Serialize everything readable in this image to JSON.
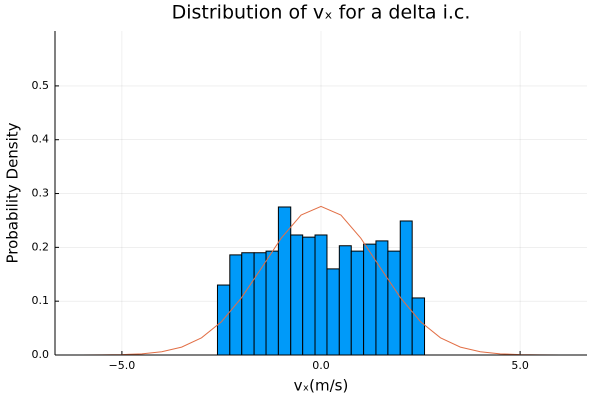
{
  "chart_data": {
    "type": "histogram",
    "title": "Distribution of vₓ for a delta i.c.",
    "x_label": "vₓ(m/s)",
    "y_label": "Probability Density",
    "bins": [
      -2.6,
      -2.29,
      -1.99,
      -1.68,
      -1.38,
      -1.07,
      -0.76,
      -0.46,
      -0.15,
      0.15,
      0.46,
      0.76,
      1.07,
      1.38,
      1.68,
      1.99,
      2.29,
      2.6
    ],
    "values": [
      0.13,
      0.186,
      0.19,
      0.19,
      0.193,
      0.275,
      0.223,
      0.219,
      0.223,
      0.16,
      0.203,
      0.193,
      0.206,
      0.212,
      0.193,
      0.249,
      0.106
    ],
    "color": "#009af9",
    "overlay": {
      "type": "line",
      "color": "#e26f46",
      "x": [
        -6.5,
        -6,
        -5.5,
        -5,
        -4.5,
        -4,
        -3.5,
        -3,
        -2.5,
        -2,
        -1.5,
        -1,
        -0.5,
        0,
        0.5,
        1,
        1.5,
        2,
        2.5,
        3,
        3.5,
        4,
        4.5,
        5,
        5.5,
        6,
        6.5
      ],
      "values": [
        1e-05,
        5e-05,
        0.0002,
        0.0007,
        0.0022,
        0.006,
        0.0147,
        0.032,
        0.0618,
        0.106,
        0.161,
        0.217,
        0.26,
        0.276,
        0.26,
        0.217,
        0.161,
        0.106,
        0.0618,
        0.032,
        0.0147,
        0.006,
        0.0022,
        0.0007,
        0.0002,
        5e-05,
        1e-05
      ]
    },
    "xlim": [
      -6.68,
      6.68
    ],
    "ylim": [
      0,
      0.602
    ],
    "xticks": [
      {
        "value": -5,
        "label": "−5.0"
      },
      {
        "value": 0,
        "label": "0.0"
      },
      {
        "value": 5,
        "label": "5.0"
      }
    ],
    "yticks": [
      {
        "value": 0,
        "label": "0.0"
      },
      0.1,
      0.2,
      0.3,
      0.4,
      0.5
    ],
    "grid": true
  }
}
